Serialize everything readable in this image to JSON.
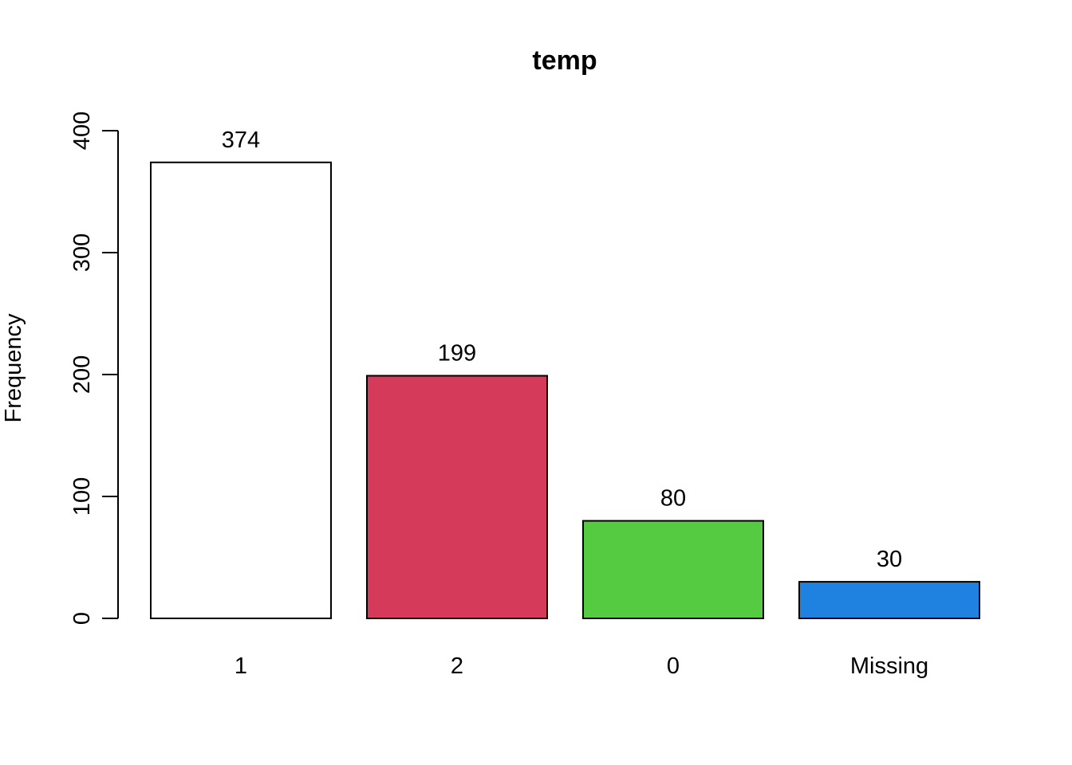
{
  "chart_data": {
    "type": "bar",
    "title": "temp",
    "xlabel": "",
    "ylabel": "Frequency",
    "categories": [
      "1",
      "2",
      "0",
      "Missing"
    ],
    "values": [
      374,
      199,
      80,
      30
    ],
    "data_labels": [
      "374",
      "199",
      "80",
      "30"
    ],
    "colors": [
      "#FFFFFF",
      "#D53A5A",
      "#54CB40",
      "#1F82E0"
    ],
    "ylim": [
      0,
      400
    ],
    "yticks": [
      0,
      100,
      200,
      300,
      400
    ],
    "ytick_labels": [
      "0",
      "100",
      "200",
      "300",
      "400"
    ],
    "grid": false,
    "legend": "none"
  }
}
